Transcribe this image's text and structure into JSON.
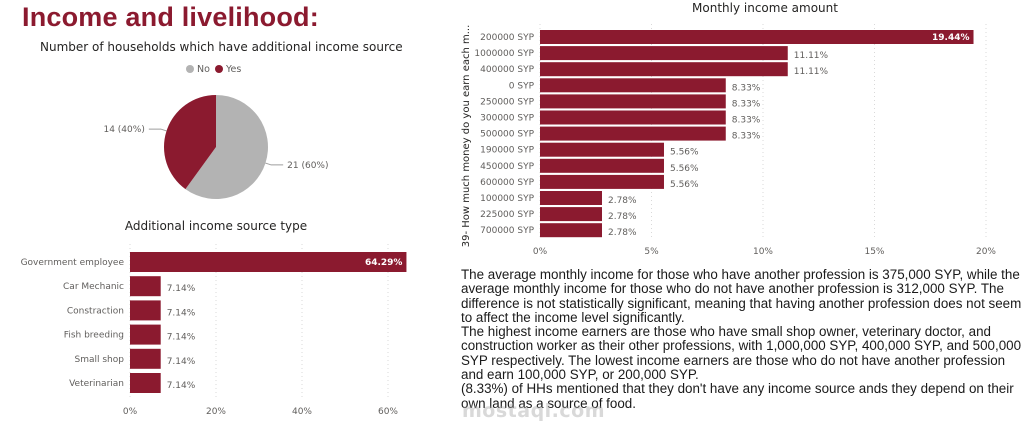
{
  "page": {
    "title": "Income and livelihood:",
    "watermark": "mostaql.com"
  },
  "colors": {
    "accent": "#8b1a2f",
    "secondary": "#b3b3b3",
    "label": "#605e5c",
    "grid": "#d9d9d9"
  },
  "chart_data": [
    {
      "id": "households-additional-income",
      "type": "pie",
      "title": "Number of households which have additional income source",
      "legend": {
        "position": "top",
        "entries": [
          "No",
          "Yes"
        ]
      },
      "slices": [
        {
          "label": "No",
          "value": 21,
          "percent": 60,
          "data_label": "21 (60%)",
          "color": "#b3b3b3"
        },
        {
          "label": "Yes",
          "value": 14,
          "percent": 40,
          "data_label": "14 (40%)",
          "color": "#8b1a2f"
        }
      ]
    },
    {
      "id": "additional-income-source-type",
      "type": "bar",
      "orientation": "horizontal",
      "title": "Additional income source type",
      "xlabel": "",
      "ylabel": "",
      "xlim": [
        0,
        65
      ],
      "x_ticks": [
        "0%",
        "20%",
        "40%",
        "60%"
      ],
      "x_tick_values": [
        0,
        20,
        40,
        60
      ],
      "grid": true,
      "categories": [
        "Government employee",
        "Car Mechanic",
        "Constraction",
        "Fish breeding",
        "Small shop",
        "Veterinarian"
      ],
      "values": [
        64.29,
        7.14,
        7.14,
        7.14,
        7.14,
        7.14
      ],
      "data_labels": [
        "64.29%",
        "7.14%",
        "7.14%",
        "7.14%",
        "7.14%",
        "7.14%"
      ]
    },
    {
      "id": "monthly-income-amount",
      "type": "bar",
      "orientation": "horizontal",
      "title": "Monthly income amount",
      "xlabel": "",
      "ylabel": "39- How much money do you earn each m...",
      "xlim": [
        0,
        20
      ],
      "x_ticks": [
        "0%",
        "5%",
        "10%",
        "15%",
        "20%"
      ],
      "x_tick_values": [
        0,
        5,
        10,
        15,
        20
      ],
      "grid": true,
      "categories": [
        "200000 SYP",
        "1000000 SYP",
        "400000 SYP",
        "0 SYP",
        "250000 SYP",
        "300000 SYP",
        "500000 SYP",
        "190000 SYP",
        "450000 SYP",
        "600000 SYP",
        "100000 SYP",
        "225000 SYP",
        "700000 SYP"
      ],
      "values": [
        19.44,
        11.11,
        11.11,
        8.33,
        8.33,
        8.33,
        8.33,
        5.56,
        5.56,
        5.56,
        2.78,
        2.78,
        2.78
      ],
      "data_labels": [
        "19.44%",
        "11.11%",
        "11.11%",
        "8.33%",
        "8.33%",
        "8.33%",
        "8.33%",
        "5.56%",
        "5.56%",
        "5.56%",
        "2.78%",
        "2.78%",
        "2.78%"
      ]
    }
  ],
  "body_text": {
    "paragraphs": [
      "The average monthly income for those who have another profession is 375,000 SYP, while the average monthly income for those who do not have another profession is 312,000 SYP. The difference is not statistically significant, meaning that having another profession does not seem to affect the income level significantly.",
      "The highest income earners are those who have small shop owner, veterinary doctor, and construction worker as their other professions, with 1,000,000 SYP, 400,000 SYP, and 500,000 SYP respectively. The lowest income earners are those who do not have another profession and earn 100,000 SYP, or 200,000 SYP.",
      "(8.33%) of HHs mentioned that they don't have any income source ands they depend on their own land as a source of food."
    ]
  }
}
